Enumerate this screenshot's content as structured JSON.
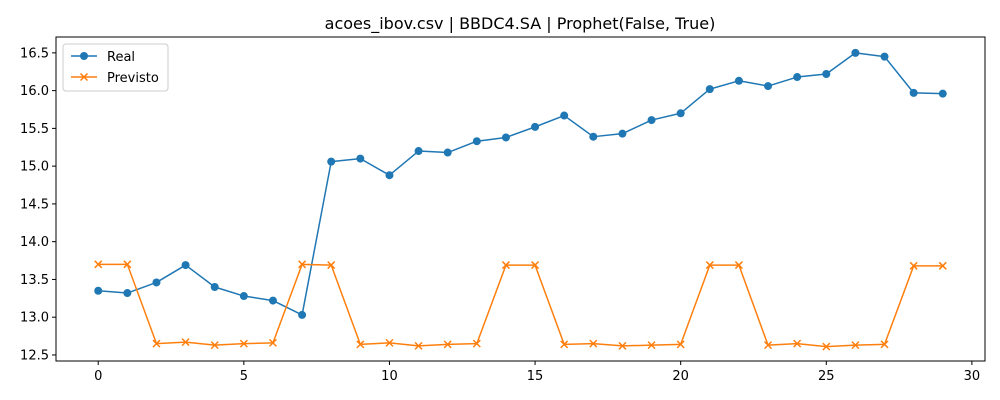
{
  "chart_data": {
    "type": "line",
    "title": "acoes_ibov.csv | BBDC4.SA | Prophet(False, True)",
    "xlabel": "",
    "ylabel": "",
    "xlim": [
      -1.45,
      30.45
    ],
    "ylim": [
      12.42,
      16.71
    ],
    "x_ticks": [
      0,
      5,
      10,
      15,
      20,
      25,
      30
    ],
    "x_tick_labels": [
      "0",
      "5",
      "10",
      "15",
      "20",
      "25",
      "30"
    ],
    "y_ticks": [
      12.5,
      13.0,
      13.5,
      14.0,
      14.5,
      15.0,
      15.5,
      16.0,
      16.5
    ],
    "y_tick_labels": [
      "12.5",
      "13.0",
      "13.5",
      "14.0",
      "14.5",
      "15.0",
      "15.5",
      "16.0",
      "16.5"
    ],
    "grid": false,
    "legend_position": "upper left",
    "x": [
      0,
      1,
      2,
      3,
      4,
      5,
      6,
      7,
      8,
      9,
      10,
      11,
      12,
      13,
      14,
      15,
      16,
      17,
      18,
      19,
      20,
      21,
      22,
      23,
      24,
      25,
      26,
      27,
      28,
      29
    ],
    "series": [
      {
        "name": "Real",
        "color": "#1f77b4",
        "marker": "circle",
        "values": [
          13.35,
          13.32,
          13.46,
          13.69,
          13.4,
          13.28,
          13.22,
          13.03,
          15.06,
          15.1,
          14.88,
          15.2,
          15.18,
          15.33,
          15.38,
          15.52,
          15.67,
          15.39,
          15.43,
          15.61,
          15.7,
          16.02,
          16.13,
          16.06,
          16.18,
          16.22,
          16.5,
          16.45,
          15.97,
          15.96
        ]
      },
      {
        "name": "Previsto",
        "color": "#ff7f0e",
        "marker": "x",
        "values": [
          13.7,
          13.7,
          12.65,
          12.67,
          12.63,
          12.65,
          12.66,
          13.7,
          13.69,
          12.64,
          12.66,
          12.62,
          12.64,
          12.65,
          13.69,
          13.69,
          12.64,
          12.65,
          12.62,
          12.63,
          12.64,
          13.69,
          13.69,
          12.63,
          12.65,
          12.61,
          12.63,
          12.64,
          13.68,
          13.68
        ]
      }
    ]
  }
}
